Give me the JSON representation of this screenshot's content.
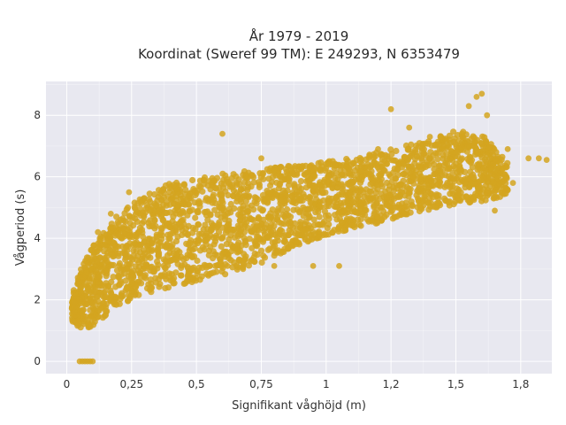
{
  "chart_data": {
    "type": "scatter",
    "title_line1": "År 1979 - 2019",
    "title_line2": "Koordinat (Sweref 99 TM): E 249293, N 6353479",
    "xlabel": "Signifikant våghöjd (m)",
    "ylabel": "Vågperiod (s)",
    "xlim": [
      -0.08,
      1.87
    ],
    "ylim": [
      -0.4,
      9.1
    ],
    "x_ticks": [
      0,
      0.25,
      0.5,
      0.75,
      1,
      1.25,
      1.5,
      1.75
    ],
    "x_tick_labels": [
      "0",
      "0,25",
      "0,5",
      "0,75",
      "1",
      "1,2",
      "1,5",
      "1,8"
    ],
    "y_ticks": [
      0,
      2,
      4,
      6,
      8
    ],
    "y_tick_labels": [
      "0",
      "2",
      "4",
      "6",
      "8"
    ],
    "grid": true,
    "colors": {
      "marker": "#D4A520",
      "plot_background": "#E8E8F0",
      "grid": "#ffffff"
    },
    "band_edges": {
      "x": [
        0.02,
        0.05,
        0.1,
        0.15,
        0.2,
        0.25,
        0.3,
        0.4,
        0.5,
        0.6,
        0.7,
        0.8,
        0.9,
        1.0,
        1.1,
        1.2,
        1.3,
        1.4,
        1.5,
        1.6,
        1.7
      ],
      "upper": [
        2.2,
        2.9,
        3.8,
        4.3,
        4.8,
        5.1,
        5.4,
        5.8,
        6.0,
        6.1,
        6.2,
        6.3,
        6.4,
        6.5,
        6.6,
        6.8,
        7.0,
        7.2,
        7.5,
        7.4,
        6.5
      ],
      "lower": [
        1.3,
        1.1,
        1.1,
        1.5,
        1.8,
        2.0,
        2.2,
        2.4,
        2.6,
        2.8,
        3.0,
        3.4,
        3.8,
        4.1,
        4.3,
        4.5,
        4.7,
        4.9,
        5.1,
        5.2,
        5.4
      ]
    },
    "outliers": [
      [
        0.05,
        0
      ],
      [
        0.06,
        0
      ],
      [
        0.07,
        0
      ],
      [
        0.08,
        0
      ],
      [
        0.09,
        0
      ],
      [
        0.1,
        0
      ],
      [
        0.6,
        7.4
      ],
      [
        0.75,
        6.6
      ],
      [
        0.8,
        6.2
      ],
      [
        0.88,
        6.35
      ],
      [
        1.2,
        6.9
      ],
      [
        1.25,
        8.2
      ],
      [
        1.32,
        7.6
      ],
      [
        1.4,
        7.3
      ],
      [
        1.55,
        8.3
      ],
      [
        1.58,
        8.6
      ],
      [
        1.6,
        8.7
      ],
      [
        1.62,
        8.0
      ],
      [
        1.7,
        6.9
      ],
      [
        1.78,
        6.6
      ],
      [
        1.82,
        6.6
      ],
      [
        1.85,
        6.55
      ],
      [
        1.72,
        5.8
      ],
      [
        1.65,
        4.9
      ],
      [
        0.05,
        1.5
      ],
      [
        0.03,
        1.6
      ],
      [
        0.12,
        4.2
      ],
      [
        0.17,
        4.8
      ],
      [
        0.24,
        5.5
      ],
      [
        0.62,
        3.1
      ],
      [
        0.68,
        3.0
      ],
      [
        0.8,
        3.1
      ],
      [
        0.95,
        3.1
      ],
      [
        1.05,
        3.1
      ]
    ]
  }
}
